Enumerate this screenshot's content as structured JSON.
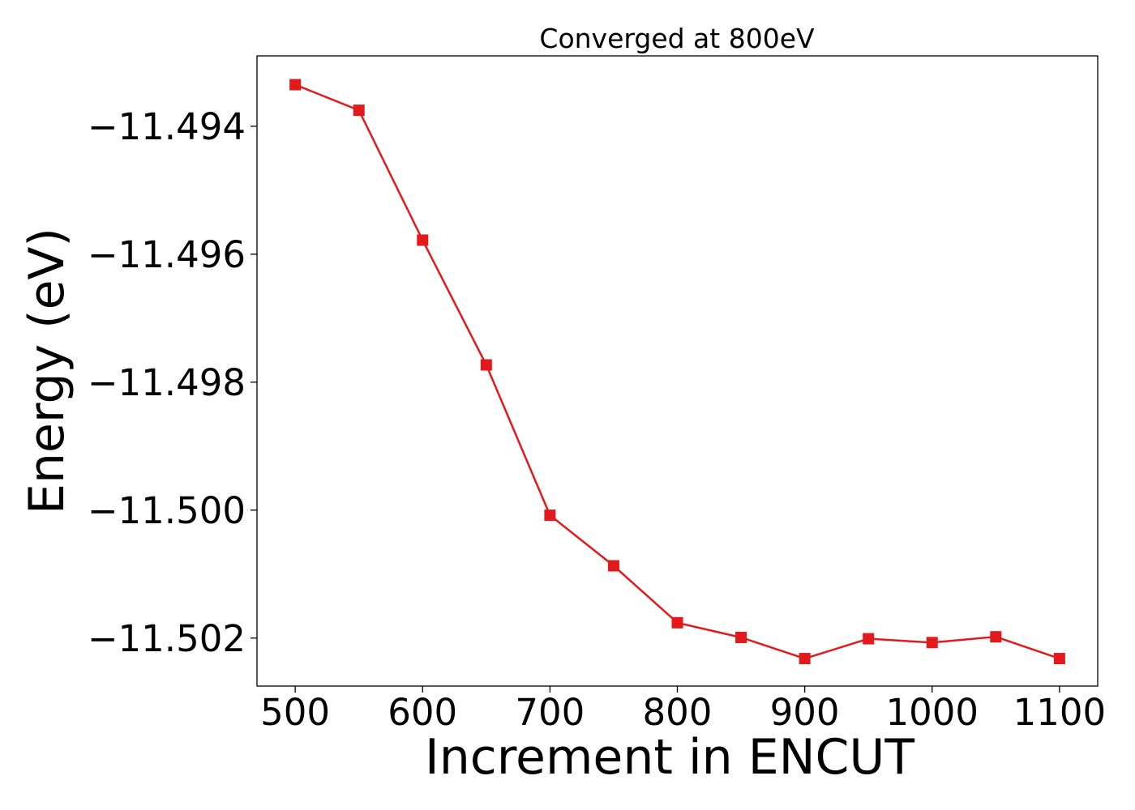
{
  "chart_data": {
    "type": "line",
    "title": "Converged at 800eV",
    "xlabel": "Increment in ENCUT",
    "ylabel": "Energy (eV)",
    "x": [
      500,
      550,
      600,
      650,
      700,
      750,
      800,
      850,
      900,
      950,
      1000,
      1050,
      1100
    ],
    "series": [
      {
        "values": [
          -11.49335,
          -11.49375,
          -11.49578,
          -11.49773,
          -11.50008,
          -11.50087,
          -11.50176,
          -11.50199,
          -11.50232,
          -11.50201,
          -11.50207,
          -11.50198,
          -11.50232
        ],
        "color": "#e31a1c",
        "marker": "square"
      }
    ],
    "xlim": [
      470,
      1130
    ],
    "ylim": [
      -11.50275,
      -11.4929
    ],
    "xticks": [
      500,
      600,
      700,
      800,
      900,
      1000,
      1100
    ],
    "xtick_labels": [
      "500",
      "600",
      "700",
      "800",
      "900",
      "1000",
      "1100"
    ],
    "yticks": [
      -11.494,
      -11.496,
      -11.498,
      -11.5,
      -11.502
    ],
    "ytick_labels": [
      "−11.494",
      "−11.496",
      "−11.498",
      "−11.500",
      "−11.502"
    ],
    "grid": false,
    "legend": "none"
  }
}
